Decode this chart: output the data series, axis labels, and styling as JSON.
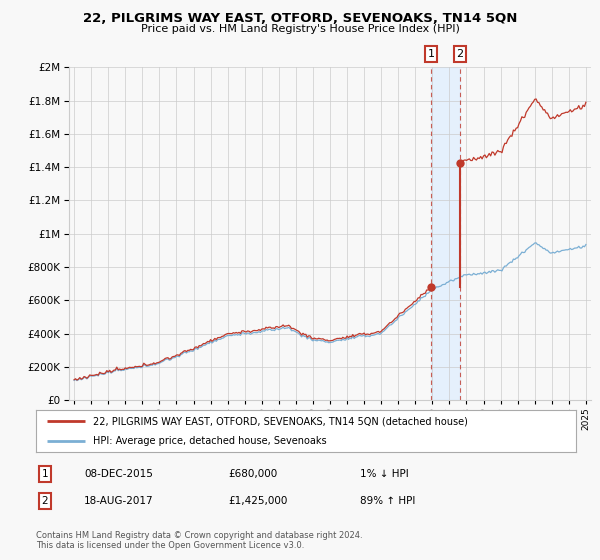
{
  "title": "22, PILGRIMS WAY EAST, OTFORD, SEVENOAKS, TN14 5QN",
  "subtitle": "Price paid vs. HM Land Registry's House Price Index (HPI)",
  "legend_line1": "22, PILGRIMS WAY EAST, OTFORD, SEVENOAKS, TN14 5QN (detached house)",
  "legend_line2": "HPI: Average price, detached house, Sevenoaks",
  "transaction1_label": "1",
  "transaction1_date": "08-DEC-2015",
  "transaction1_price": "£680,000",
  "transaction1_hpi": "1% ↓ HPI",
  "transaction2_label": "2",
  "transaction2_date": "18-AUG-2017",
  "transaction2_price": "£1,425,000",
  "transaction2_hpi": "89% ↑ HPI",
  "footer": "Contains HM Land Registry data © Crown copyright and database right 2024.\nThis data is licensed under the Open Government Licence v3.0.",
  "hpi_color": "#7bafd4",
  "property_color": "#c0392b",
  "transaction_color": "#c0392b",
  "background_color": "#f8f8f8",
  "grid_color": "#cccccc",
  "shade_color": "#ddeeff",
  "year_start": 1995,
  "year_end": 2025,
  "ylim_max": 2000000,
  "transaction1_year": 2015.92,
  "transaction1_value": 680000,
  "transaction2_year": 2017.63,
  "transaction2_value": 1425000
}
